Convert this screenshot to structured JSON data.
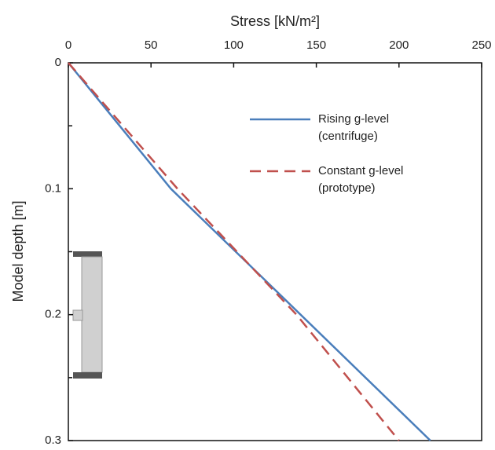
{
  "chart_data": {
    "type": "line",
    "title": "Stress [kN/m²]",
    "y_label": "Model depth [m]",
    "xlim": [
      0,
      250
    ],
    "xticks": [
      0,
      50,
      100,
      150,
      200,
      250
    ],
    "ylim": [
      0,
      0.3
    ],
    "y_reversed": true,
    "yticks": [
      0,
      0.1,
      0.2,
      0.3
    ],
    "yminorticks": [
      0.05,
      0.15,
      0.25
    ],
    "series": [
      {
        "name": "Rising g-level (centrifuge)",
        "color": "#4a7ebb",
        "dashed": false,
        "x": [
          0,
          62,
          219
        ],
        "values": [
          0,
          0.1,
          0.3
        ]
      },
      {
        "name": "Constant g-level (prototype)",
        "color": "#c0504d",
        "dashed": true,
        "x": [
          0,
          66,
          138,
          200
        ],
        "values": [
          0,
          0.1,
          0.2,
          0.3
        ]
      }
    ]
  }
}
